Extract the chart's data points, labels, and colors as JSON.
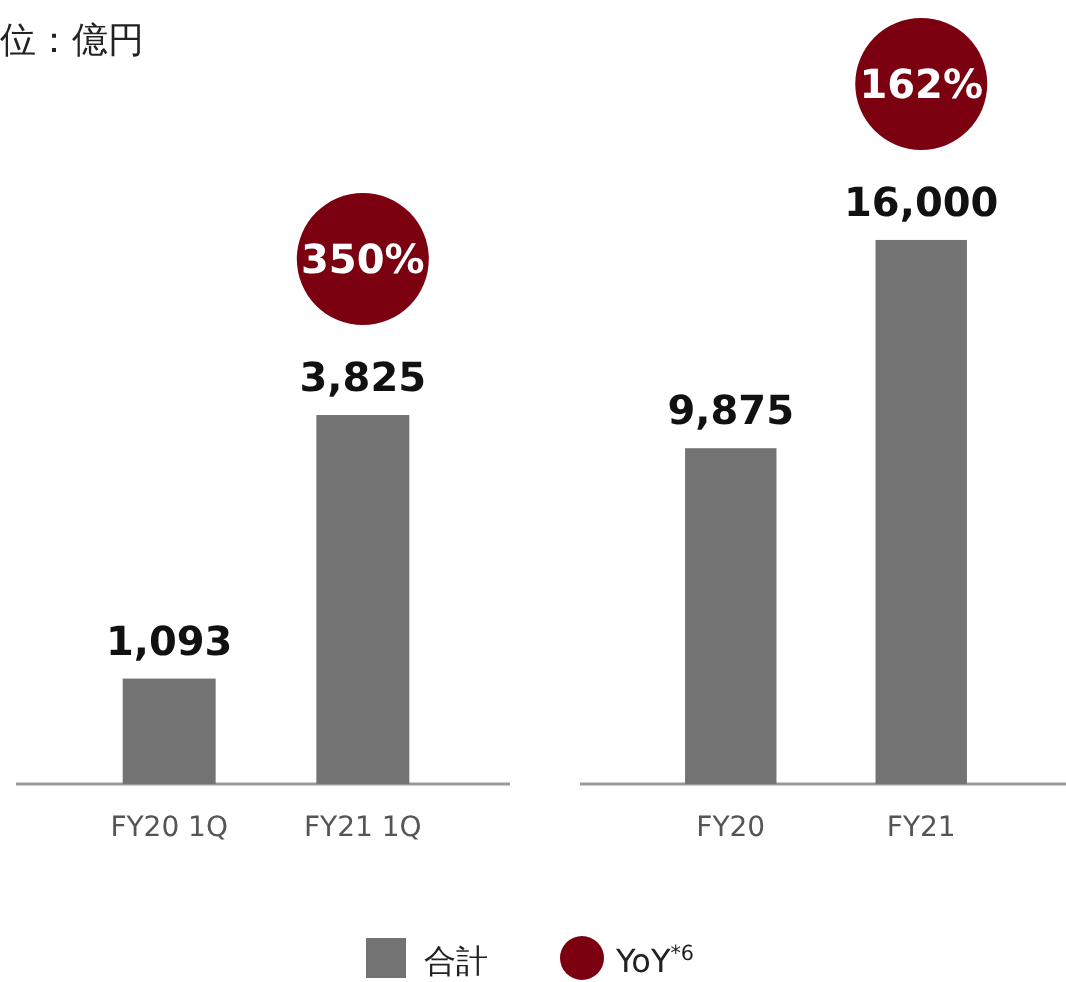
{
  "chart_data": [
    {
      "type": "bar",
      "title": "位：億円",
      "categories": [
        "FY20 1Q",
        "FY21 1Q"
      ],
      "series": [
        {
          "name": "合計",
          "color": "#737373",
          "values": [
            1093,
            3825
          ],
          "value_labels": [
            "1,093",
            "3,825"
          ]
        }
      ],
      "tick_labels": "x",
      "legend": "bottom",
      "annotations": [
        "350%",
        "YoY$^{*6}$"
      ]
    },
    {
      "type": "bar",
      "categories": [
        "FY20",
        "FY21"
      ],
      "series": [
        {
          "color": "#737373",
          "values": [
            9875,
            16000
          ],
          "value_labels": [
            "9,875",
            "16,000"
          ]
        }
      ],
      "tick_labels": "x",
      "annotations": [
        "162%"
      ]
    }
  ]
}
